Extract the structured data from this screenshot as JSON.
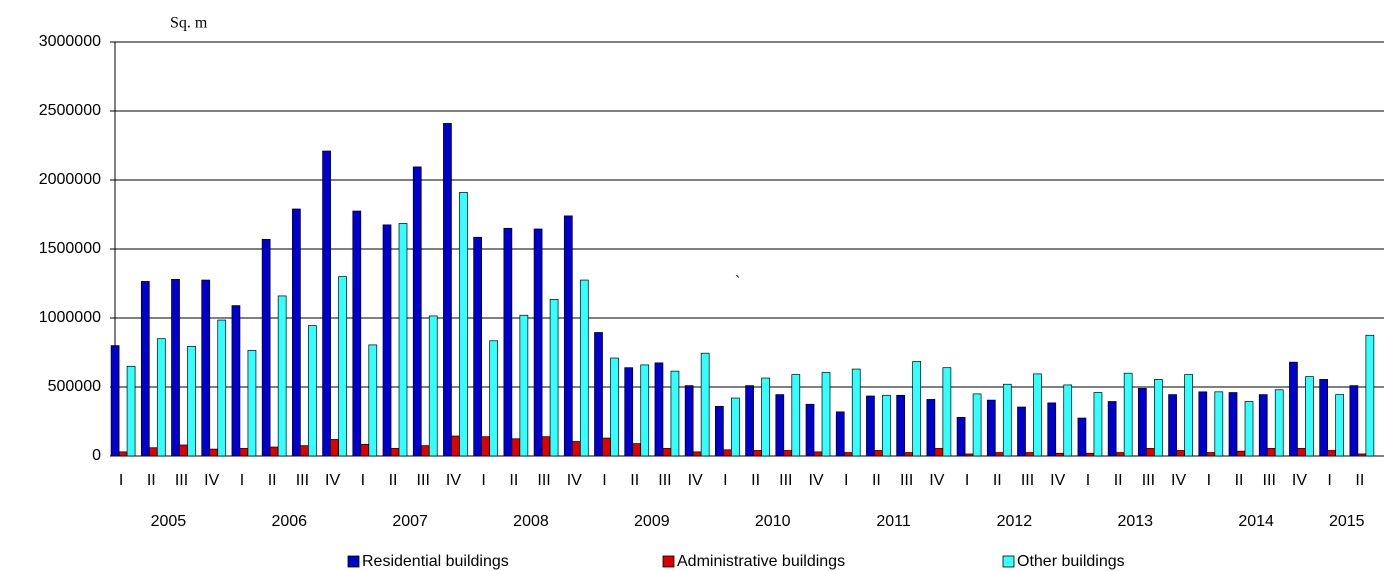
{
  "chart_data": {
    "type": "bar",
    "y_label": "Sq. m",
    "annotation": "`",
    "categories": [
      "I",
      "II",
      "III",
      "IV",
      "I",
      "II",
      "III",
      "IV",
      "I",
      "II",
      "III",
      "IV",
      "I",
      "II",
      "III",
      "IV",
      "I",
      "II",
      "III",
      "IV",
      "I",
      "II",
      "III",
      "IV",
      "I",
      "II",
      "III",
      "IV",
      "I",
      "II",
      "III",
      "IV",
      "I",
      "II",
      "III",
      "IV",
      "I",
      "II",
      "III",
      "IV",
      "I",
      "II"
    ],
    "years": [
      "2005",
      "2006",
      "2007",
      "2008",
      "2009",
      "2010",
      "2011",
      "2012",
      "2013",
      "2014",
      "2015"
    ],
    "series": [
      {
        "name": "Residential buildings",
        "color": "#0000cc",
        "values": [
          800000,
          1265000,
          1280000,
          1275000,
          1090000,
          1570000,
          1790000,
          2210000,
          1775000,
          1675000,
          2095000,
          2410000,
          1585000,
          1650000,
          1645000,
          1740000,
          895000,
          640000,
          675000,
          510000,
          360000,
          510000,
          445000,
          375000,
          320000,
          435000,
          440000,
          410000,
          280000,
          405000,
          355000,
          385000,
          275000,
          395000,
          490000,
          445000,
          465000,
          460000,
          445000,
          680000,
          555000,
          510000
        ]
      },
      {
        "name": "Administrative buildings",
        "color": "#dd0000",
        "values": [
          30000,
          60000,
          80000,
          50000,
          55000,
          65000,
          75000,
          120000,
          85000,
          55000,
          75000,
          145000,
          140000,
          125000,
          140000,
          105000,
          130000,
          90000,
          55000,
          30000,
          45000,
          40000,
          40000,
          30000,
          25000,
          40000,
          25000,
          55000,
          15000,
          25000,
          25000,
          20000,
          20000,
          25000,
          55000,
          40000,
          25000,
          35000,
          55000,
          55000,
          40000,
          15000
        ]
      },
      {
        "name": "Other buildings",
        "color": "#33ffff",
        "values": [
          650000,
          850000,
          795000,
          985000,
          765000,
          1160000,
          945000,
          1300000,
          805000,
          1685000,
          1015000,
          1910000,
          835000,
          1020000,
          1135000,
          1275000,
          710000,
          660000,
          615000,
          745000,
          420000,
          565000,
          590000,
          605000,
          630000,
          440000,
          685000,
          640000,
          450000,
          520000,
          595000,
          515000,
          460000,
          600000,
          555000,
          590000,
          465000,
          395000,
          480000,
          575000,
          445000,
          875000
        ]
      }
    ],
    "ylim": [
      0,
      3000000
    ],
    "yticks": [
      0,
      500000,
      1000000,
      1500000,
      2000000,
      2500000,
      3000000
    ],
    "grid": true
  }
}
